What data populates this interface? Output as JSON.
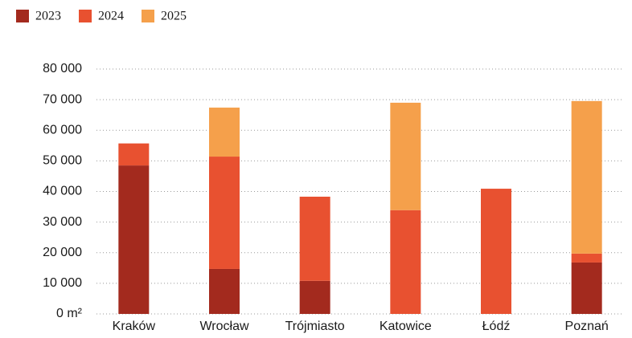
{
  "chart_data": {
    "type": "stacked_bar",
    "categories": [
      "Kraków",
      "Wrocław",
      "Trójmiasto",
      "Katowice",
      "Łódź",
      "Poznań"
    ],
    "series": [
      {
        "name": "2023",
        "color": "#a32a1e",
        "values": [
          48500,
          14700,
          10800,
          0,
          0,
          16800
        ]
      },
      {
        "name": "2024",
        "color": "#e85130",
        "values": [
          7200,
          36700,
          27500,
          33900,
          40900,
          2900
        ]
      },
      {
        "name": "2025",
        "color": "#f5a04b",
        "values": [
          0,
          16000,
          0,
          35100,
          0,
          49850
        ]
      }
    ],
    "ylim": [
      0,
      80000
    ],
    "yticks": [
      {
        "value": 0,
        "label": "0 m²"
      },
      {
        "value": 10000,
        "label": "10 000"
      },
      {
        "value": 20000,
        "label": "20 000"
      },
      {
        "value": 30000,
        "label": "30 000"
      },
      {
        "value": 40000,
        "label": "40 000"
      },
      {
        "value": 50000,
        "label": "50 000"
      },
      {
        "value": 60000,
        "label": "60 000"
      },
      {
        "value": 70000,
        "label": "70 000"
      },
      {
        "value": 80000,
        "label": "80 000"
      }
    ],
    "grid": true,
    "legend": "top-left"
  }
}
